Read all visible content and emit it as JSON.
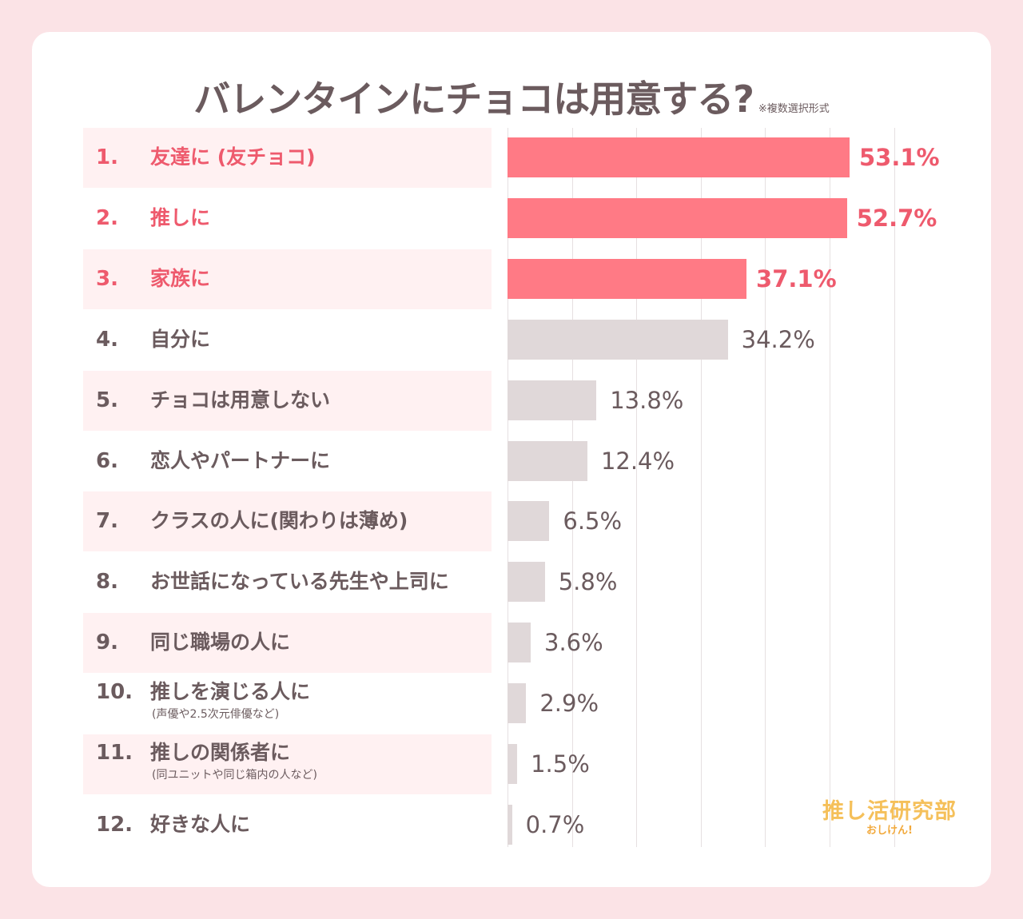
{
  "title": "バレンタインにチョコは用意する?",
  "note": "※複数選択形式",
  "logo": {
    "main": "推し活研究部",
    "sub": "おしけん!"
  },
  "colors": {
    "highlight": "#ff7a85",
    "other": "#e0d8d9",
    "highlight_text": "#ee5a6d",
    "text": "#6b5b5e"
  },
  "chart_data": {
    "type": "bar",
    "orientation": "horizontal",
    "unit": "%",
    "xlim": [
      0,
      60
    ],
    "grid": true,
    "categories": [
      {
        "rank": "1.",
        "label": "友達に (友チョコ)",
        "sub": "",
        "value": 53.1,
        "display": "53.1%",
        "highlight": true
      },
      {
        "rank": "2.",
        "label": "推しに",
        "sub": "",
        "value": 52.7,
        "display": "52.7%",
        "highlight": true
      },
      {
        "rank": "3.",
        "label": "家族に",
        "sub": "",
        "value": 37.1,
        "display": "37.1%",
        "highlight": true
      },
      {
        "rank": "4.",
        "label": "自分に",
        "sub": "",
        "value": 34.2,
        "display": "34.2%",
        "highlight": false
      },
      {
        "rank": "5.",
        "label": "チョコは用意しない",
        "sub": "",
        "value": 13.8,
        "display": "13.8%",
        "highlight": false
      },
      {
        "rank": "6.",
        "label": "恋人やパートナーに",
        "sub": "",
        "value": 12.4,
        "display": "12.4%",
        "highlight": false
      },
      {
        "rank": "7.",
        "label": "クラスの人に(関わりは薄め)",
        "sub": "",
        "value": 6.5,
        "display": "6.5%",
        "highlight": false
      },
      {
        "rank": "8.",
        "label": "お世話になっている先生や上司に",
        "sub": "",
        "value": 5.8,
        "display": "5.8%",
        "highlight": false
      },
      {
        "rank": "9.",
        "label": "同じ職場の人に",
        "sub": "",
        "value": 3.6,
        "display": "3.6%",
        "highlight": false
      },
      {
        "rank": "10.",
        "label": "推しを演じる人に",
        "sub": "(声優や2.5次元俳優など)",
        "value": 2.9,
        "display": "2.9%",
        "highlight": false
      },
      {
        "rank": "11.",
        "label": "推しの関係者に",
        "sub": "(同ユニットや同じ箱内の人など)",
        "value": 1.5,
        "display": "1.5%",
        "highlight": false
      },
      {
        "rank": "12.",
        "label": "好きな人に",
        "sub": "",
        "value": 0.7,
        "display": "0.7%",
        "highlight": false
      }
    ]
  }
}
